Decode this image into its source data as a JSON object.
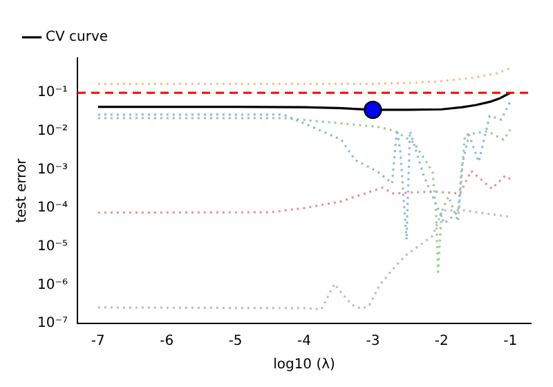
{
  "chart_data": {
    "type": "line",
    "xlabel": "log10 (λ)",
    "ylabel": "test error",
    "log": "y",
    "legend": "top left",
    "grid": false,
    "xlim": [
      -7.3,
      -0.7
    ],
    "xticks": [
      -7,
      -6,
      -5,
      -4,
      -3,
      -2,
      -1
    ],
    "ylim": [
      1e-07,
      0.8
    ],
    "yticks": [
      {
        "value": 1e-07,
        "label": "10⁻⁷"
      },
      {
        "value": 1e-06,
        "label": "10⁻⁶"
      },
      {
        "value": 1e-05,
        "label": "10⁻⁵"
      },
      {
        "value": 0.0001,
        "label": "10⁻⁴"
      },
      {
        "value": 0.001,
        "label": "10⁻³"
      },
      {
        "value": 0.01,
        "label": "10⁻²"
      },
      {
        "value": 0.1,
        "label": "10⁻¹"
      }
    ],
    "ref_lines": [
      {
        "axis": "y",
        "value": 0.1,
        "color": "#ff0000",
        "line_style": "dashed"
      }
    ],
    "series": [
      {
        "color": "#ffbf86",
        "line_style": "dotted",
        "x": [
          -7,
          -5,
          -4,
          -3,
          -2.5,
          -2,
          -1.5,
          -1.2,
          -1
        ],
        "values": [
          0.17,
          0.17,
          0.17,
          0.17,
          0.18,
          0.2,
          0.25,
          0.32,
          0.43
        ]
      },
      {
        "color": "#95cf95",
        "line_style": "dotted",
        "x": [
          -7,
          -4.3,
          -3.46,
          -2.93,
          -2.67,
          -2.4,
          -2.13,
          -2.08,
          -2.05,
          -2,
          -1.9,
          -1.76,
          -1.66,
          -1.33,
          -1.1,
          -1
        ],
        "values": [
          0.022,
          0.022,
          0.016,
          0.013,
          0.01,
          0.005,
          0.00087,
          8e-05,
          2.2e-06,
          8e-05,
          0.0002,
          4.5e-05,
          0.008,
          0.01,
          0.006,
          0.011
        ]
      },
      {
        "color": "#8fbbd9",
        "line_style": "dotted",
        "x": [
          -7,
          -4.3,
          -4,
          -3.46,
          -3.26,
          -2.93,
          -2.72,
          -2.65,
          -2.6,
          -2.51,
          -2.46,
          -2.26,
          -1.96,
          -1.76,
          -1.7,
          -1.6,
          -1.46,
          -1.3,
          -1.13,
          -1
        ],
        "values": [
          0.027,
          0.027,
          0.016,
          0.006,
          0.0018,
          0.00089,
          0.00044,
          0.011,
          0.003,
          1.5e-05,
          0.01,
          0.0007,
          4e-05,
          8e-05,
          0.0014,
          0.008,
          0.0016,
          0.025,
          0.02,
          0.06
        ]
      },
      {
        "color": "#ea9393",
        "line_style": "dotted",
        "x": [
          -7,
          -4.5,
          -4,
          -3.46,
          -2.86,
          -2.7,
          -2.13,
          -1.73,
          -1.57,
          -1.27,
          -1.07,
          -1
        ],
        "values": [
          7.6e-05,
          7.8e-05,
          0.0001,
          0.00015,
          0.00034,
          0.00024,
          0.00027,
          0.00024,
          0.00093,
          0.00032,
          0.0007,
          0.00056
        ]
      },
      {
        "color": "#c9b3de",
        "line_style": "dotted",
        "x": [
          -7,
          -4,
          -3.75,
          -3.56,
          -3.45,
          -3.3,
          -3.16,
          -3.05,
          -2.9,
          -2.7,
          -2.53,
          -2.13,
          -1.99,
          -1.67,
          -1.03
        ],
        "values": [
          2.6e-07,
          2.5e-07,
          2.3e-07,
          1.07e-06,
          6e-07,
          3e-07,
          2.4e-07,
          3e-07,
          1e-06,
          2.7e-06,
          5.7e-06,
          1.9e-05,
          8.7e-05,
          8.7e-05,
          6e-05
        ]
      },
      {
        "name": "CV curve",
        "color": "#000000",
        "line_style": "solid",
        "x": [
          -7,
          -5,
          -4,
          -3.5,
          -3,
          -2.5,
          -2,
          -1.7,
          -1.5,
          -1.3,
          -1.15,
          -1
        ],
        "values": [
          0.043,
          0.043,
          0.042,
          0.04,
          0.036,
          0.036,
          0.037,
          0.042,
          0.048,
          0.058,
          0.072,
          0.1
        ]
      },
      {
        "type": "scatter",
        "marker": "circle",
        "color": "#0000ff",
        "x": [
          -3
        ],
        "values": [
          0.036
        ]
      }
    ]
  }
}
